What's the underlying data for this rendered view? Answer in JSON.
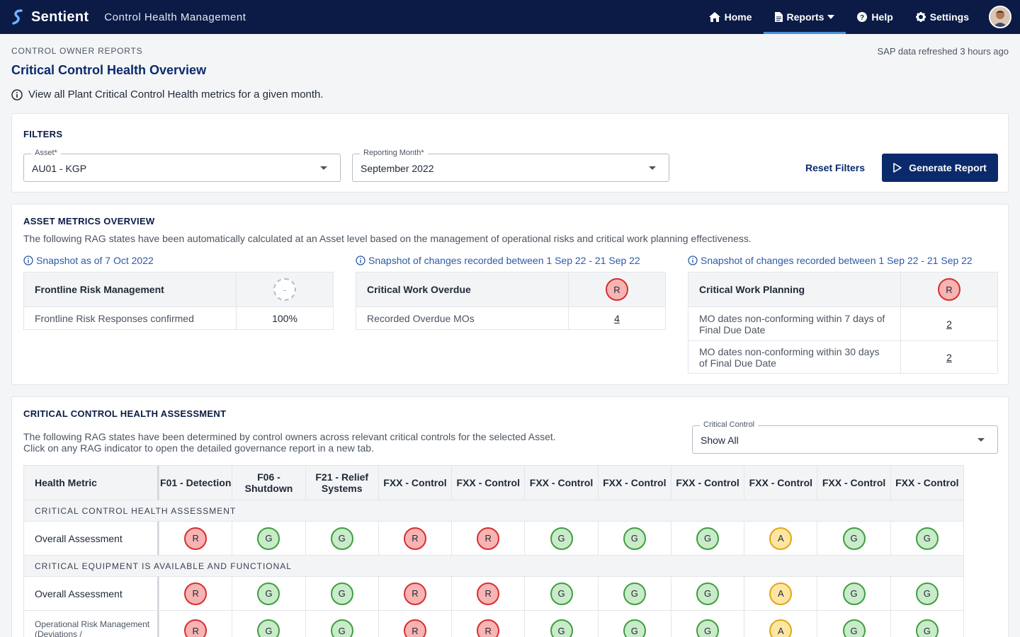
{
  "header": {
    "brand": "Sentient",
    "app_name": "Control Health Management",
    "nav": [
      {
        "label": "Home",
        "icon": "home-icon"
      },
      {
        "label": "Reports",
        "icon": "document-icon",
        "active": true,
        "dropdown": true
      },
      {
        "label": "Help",
        "icon": "help-icon"
      },
      {
        "label": "Settings",
        "icon": "gear-icon"
      }
    ],
    "colors": {
      "bar": "#0b1b45",
      "active_underline": "#4a8fd8"
    }
  },
  "page": {
    "eyebrow": "CONTROL OWNER REPORTS",
    "refresh": "SAP data refreshed 3 hours ago",
    "title": "Critical Control Health Overview",
    "description": "View all Plant Critical Control Health metrics for a given month."
  },
  "filters": {
    "title": "FILTERS",
    "asset": {
      "label": "Asset*",
      "value": "AU01 - KGP"
    },
    "month": {
      "label": "Reporting Month*",
      "value": "September 2022"
    },
    "reset_label": "Reset Filters",
    "generate_label": "Generate Report"
  },
  "metrics": {
    "title": "ASSET METRICS OVERVIEW",
    "description": "The following RAG states have been automatically calculated at an Asset level based on the management of operational risks and critical work planning effectiveness.",
    "panels": [
      {
        "snapshot": "Snapshot as of 7 Oct 2022",
        "heading": "Frontline Risk Management",
        "rag": "-",
        "rows": [
          {
            "label": "Frontline Risk Responses confirmed",
            "value": "100%"
          }
        ]
      },
      {
        "snapshot": "Snapshot of changes recorded between 1 Sep 22 - 21 Sep 22",
        "heading": "Critical Work Overdue",
        "rag": "R",
        "rows": [
          {
            "label": "Recorded Overdue MOs",
            "value": "4"
          }
        ]
      },
      {
        "snapshot": "Snapshot of changes recorded between 1 Sep 22 - 21 Sep 22",
        "heading": "Critical Work Planning",
        "rag": "R",
        "rows": [
          {
            "label": "MO dates non-conforming within 7 days of Final Due Date",
            "value": "2"
          },
          {
            "label": "MO dates non-conforming within 30 days of Final Due Date",
            "value": "2"
          }
        ]
      }
    ]
  },
  "health": {
    "title": "CRITICAL CONTROL HEALTH ASSESSMENT",
    "description_1": "The following RAG states have been determined by control owners across relevant critical controls for the selected Asset.",
    "description_2": "Click on any RAG indicator to open the detailed governance report in a new tab.",
    "filter": {
      "label": "Critical Control",
      "value": "Show All"
    },
    "first_col": "Health Metric",
    "columns": [
      "F01 - Detection",
      "F06 - Shutdown",
      "F21 - Relief Systems",
      "FXX - Control",
      "FXX - Control",
      "FXX - Control",
      "FXX - Control",
      "FXX - Control",
      "FXX - Control",
      "FXX - Control",
      "FXX - Control"
    ],
    "sections": [
      {
        "label": "CRITICAL CONTROL HEALTH ASSESSMENT",
        "rows": [
          {
            "label": "Overall Assessment",
            "values": [
              "R",
              "G",
              "G",
              "R",
              "R",
              "G",
              "G",
              "G",
              "A",
              "G",
              "G"
            ]
          }
        ]
      },
      {
        "label": "CRITICAL EQUIPMENT IS AVAILABLE AND FUNCTIONAL",
        "rows": [
          {
            "label": "Overall Assessment",
            "values": [
              "R",
              "G",
              "G",
              "R",
              "R",
              "G",
              "G",
              "G",
              "A",
              "G",
              "G"
            ]
          },
          {
            "label": "Operational Risk Management (Deviations /",
            "values": [
              "R",
              "G",
              "G",
              "R",
              "R",
              "G",
              "G",
              "G",
              "A",
              "G",
              "G"
            ],
            "small": true
          }
        ]
      }
    ],
    "rag_colors": {
      "R": "#d62f2f",
      "G": "#3f9e3f",
      "A": "#e1a614"
    }
  }
}
